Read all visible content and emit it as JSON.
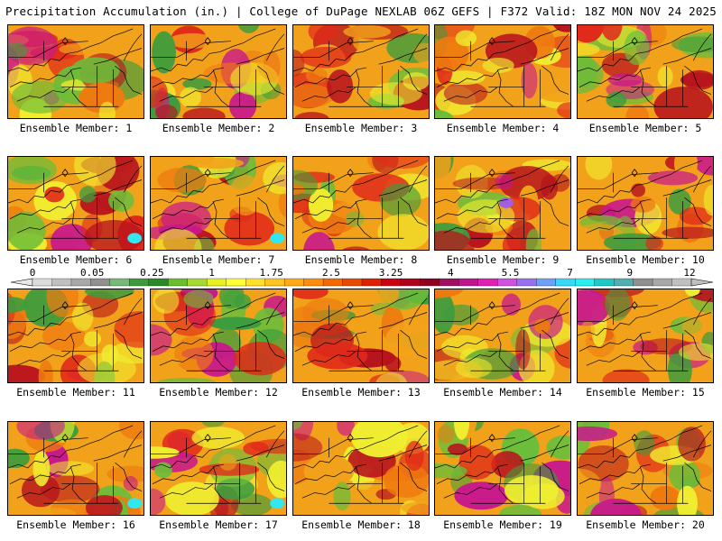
{
  "header": {
    "left": "Precipitation Accumulation (in.) | College of DuPage NEXLAB",
    "right": "06Z GEFS | F372 Valid: 18Z MON NOV 24 2025"
  },
  "members": [
    {
      "label": "Ensemble Member: 1"
    },
    {
      "label": "Ensemble Member: 2"
    },
    {
      "label": "Ensemble Member: 3"
    },
    {
      "label": "Ensemble Member: 4"
    },
    {
      "label": "Ensemble Member: 5"
    },
    {
      "label": "Ensemble Member: 6"
    },
    {
      "label": "Ensemble Member: 7"
    },
    {
      "label": "Ensemble Member: 8"
    },
    {
      "label": "Ensemble Member: 9"
    },
    {
      "label": "Ensemble Member: 10"
    },
    {
      "label": "Ensemble Member: 11"
    },
    {
      "label": "Ensemble Member: 12"
    },
    {
      "label": "Ensemble Member: 13"
    },
    {
      "label": "Ensemble Member: 14"
    },
    {
      "label": "Ensemble Member: 15"
    },
    {
      "label": "Ensemble Member: 16"
    },
    {
      "label": "Ensemble Member: 17"
    },
    {
      "label": "Ensemble Member: 18"
    },
    {
      "label": "Ensemble Member: 19"
    },
    {
      "label": "Ensemble Member: 20"
    }
  ],
  "colorbar": {
    "tick_labels": [
      "0",
      "0.05",
      "0.25",
      "1",
      "1.75",
      "2.5",
      "3.25",
      "4",
      "5.5",
      "7",
      "9",
      "12"
    ],
    "colors": [
      "#dcdcdc",
      "#c0c0c0",
      "#a8a8a8",
      "#909090",
      "#78b878",
      "#3f9a3f",
      "#2a8a2a",
      "#6abf2e",
      "#a6d933",
      "#e8f020",
      "#ffff33",
      "#ffe12a",
      "#ffc41f",
      "#ffa914",
      "#ff8c0a",
      "#f56a00",
      "#ea4a00",
      "#e02000",
      "#cc0010",
      "#b0001a",
      "#900020",
      "#a01060",
      "#c0168c",
      "#e020b0",
      "#d050e0",
      "#9a70f0",
      "#6fa0f8",
      "#38d8f8",
      "#28f0f0",
      "#20c8c8",
      "#50b0b0",
      "#909090",
      "#a8a8a8",
      "#c0c0c0"
    ]
  },
  "map_colors": {
    "green": "#3d9c3d",
    "lightgreen": "#6cbd3a",
    "yellow": "#f0ee30",
    "orange": "#f2a21a",
    "darkorange": "#ee7a10",
    "red": "#e0281a",
    "darkred": "#b8141e",
    "magenta": "#c8188c",
    "purple": "#a060e0",
    "cyan": "#30e8f0",
    "gray": "#909090"
  }
}
